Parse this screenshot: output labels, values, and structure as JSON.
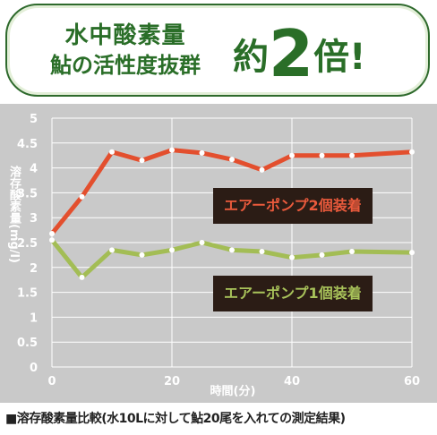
{
  "banner": {
    "line1": "水中酸素量",
    "line2": "鮎の活性度抜群",
    "yaku": "約",
    "num": "2",
    "bai": "倍",
    "bang": "!"
  },
  "chart_data": {
    "type": "line",
    "title": "",
    "xlabel": "時間(分)",
    "ylabel": "溶存酸素量(mg/l)",
    "xlim": [
      0,
      60
    ],
    "ylim": [
      0,
      5
    ],
    "xticks": [
      0,
      20,
      40,
      60
    ],
    "yticks": [
      0,
      0.5,
      1,
      1.5,
      2,
      2.5,
      3,
      3.5,
      4,
      4.5,
      5
    ],
    "ytick_labels": [
      "0",
      "0.5",
      "1",
      "1.5",
      "2",
      "2.5",
      "3",
      "3.5",
      "4",
      "4.5",
      "5"
    ],
    "grid": true,
    "series": [
      {
        "name": "エアーポンプ2個装着",
        "color": "#e34f2e",
        "x": [
          0,
          5,
          10,
          15,
          20,
          25,
          30,
          35,
          40,
          45,
          50,
          60
        ],
        "y": [
          2.68,
          3.42,
          4.32,
          4.15,
          4.36,
          4.3,
          4.17,
          3.96,
          4.25,
          4.25,
          4.25,
          4.32
        ]
      },
      {
        "name": "エアーポンプ1個装着",
        "color": "#a3bd55",
        "x": [
          0,
          5,
          10,
          15,
          20,
          25,
          30,
          35,
          40,
          45,
          50,
          60
        ],
        "y": [
          2.55,
          1.8,
          2.35,
          2.25,
          2.35,
          2.5,
          2.35,
          2.32,
          2.2,
          2.25,
          2.32,
          2.3
        ]
      }
    ]
  },
  "legend": {
    "red": "エアーポンプ2個装着",
    "green": "エアーポンプ1個装着"
  },
  "caption": "■溶存酸素量比較(水10Lに対して鮎20尾を入れての測定結果)"
}
